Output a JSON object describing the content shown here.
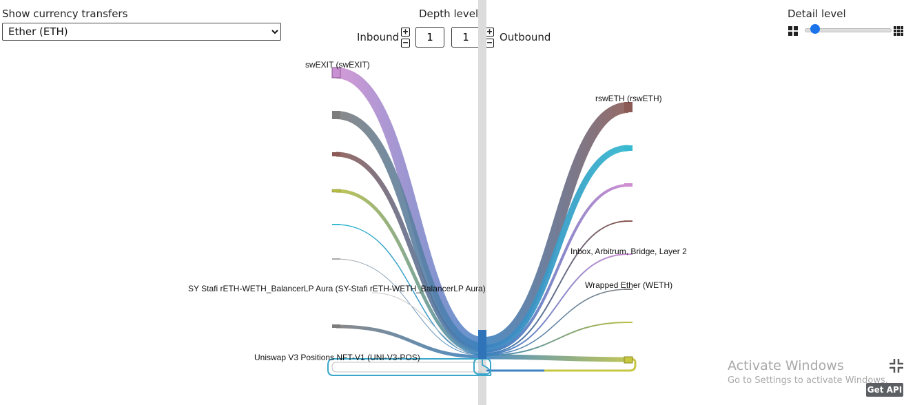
{
  "controls": {
    "currency_label": "Show currency transfers",
    "currency_selected": "Ether (ETH)",
    "depth_label": "Depth level",
    "inbound_label": "Inbound",
    "inbound_value": "1",
    "outbound_value": "1",
    "outbound_label": "Outbound",
    "detail_label": "Detail level",
    "detail_level": 0.05,
    "plus": "+",
    "minus": "−"
  },
  "graph": {
    "labels": {
      "swexit": "swEXIT (swEXIT)",
      "sy_stafi": "SY Stafi rETH-WETH_BalancerLP Aura (SY-Stafi rETH-WETH_BalancerLP Aura)",
      "uniswap": "Uniswap V3 Positions NFT-V1 (UNI-V3-POS)",
      "rsweth": "rswETH (rswETH)",
      "inbox": "Inbox, Arbitrum, Bridge, Layer 2",
      "weth": "Wrapped Ether (WETH)"
    },
    "colors": {
      "pink": "#c98fd3",
      "gray": "#7d7d7d",
      "brown": "#8c5a54",
      "olive": "#b8bf45",
      "teal": "#37b9cf",
      "lightgray": "#a8a8a8",
      "blue": "#3c82c0",
      "center_bar": "#dcdcdc"
    }
  },
  "watermark": {
    "line1": "Activate Windows",
    "line2": "Go to Settings to activate Windows.",
    "api_button": "Get API"
  }
}
